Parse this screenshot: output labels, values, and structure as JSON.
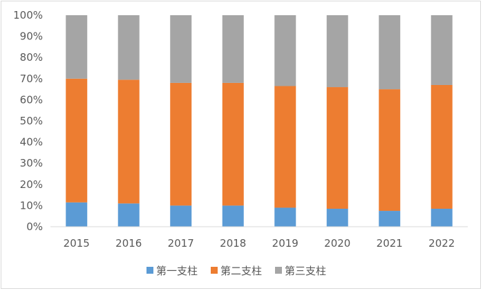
{
  "chart_data": {
    "type": "bar",
    "stacked": "percent",
    "categories": [
      "2015",
      "2016",
      "2017",
      "2018",
      "2019",
      "2020",
      "2021",
      "2022"
    ],
    "series": [
      {
        "name": "第一支柱",
        "color": "#5b9bd5",
        "values": [
          11.5,
          11,
          10,
          10,
          9,
          8.5,
          7.5,
          8.5
        ]
      },
      {
        "name": "第二支柱",
        "color": "#ed7d31",
        "values": [
          58.5,
          58.5,
          58,
          58,
          57.5,
          57.5,
          57.5,
          58.5
        ]
      },
      {
        "name": "第三支柱",
        "color": "#a5a5a5",
        "values": [
          30,
          30.5,
          32,
          32,
          33.5,
          34,
          35,
          33
        ]
      }
    ],
    "ylim": [
      0,
      100
    ],
    "yticks": [
      "0%",
      "10%",
      "20%",
      "30%",
      "40%",
      "50%",
      "60%",
      "70%",
      "80%",
      "90%",
      "100%"
    ],
    "grid": false,
    "legend_position": "bottom"
  }
}
